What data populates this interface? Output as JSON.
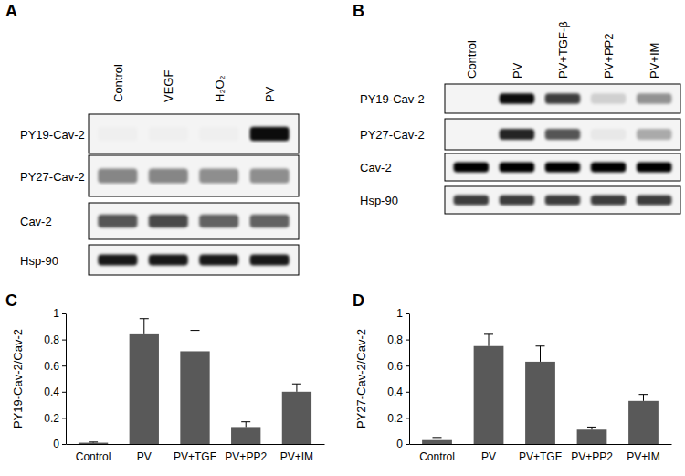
{
  "panels": [
    {
      "label": "A",
      "type": "blot",
      "lanes": [
        "Control",
        "VEGF",
        "H₂O₂",
        "PV"
      ],
      "rows": [
        {
          "name": "PY19-Cav-2",
          "bands": [
            0.02,
            0.02,
            0.02,
            0.95
          ]
        },
        {
          "name": "PY27-Cav-2",
          "bands": [
            0.45,
            0.45,
            0.42,
            0.42
          ]
        },
        {
          "name": "Cav-2",
          "bands": [
            0.65,
            0.7,
            0.6,
            0.6
          ]
        },
        {
          "name": "Hsp-90",
          "bands": [
            0.9,
            0.9,
            0.9,
            0.9
          ]
        }
      ]
    },
    {
      "label": "B",
      "type": "blot",
      "lanes": [
        "Control",
        "PV",
        "PV+TGF-β",
        "PV+PP2",
        "PV+IM"
      ],
      "rows": [
        {
          "name": "PY19-Cav-2",
          "bands": [
            0,
            0.95,
            0.75,
            0.15,
            0.4
          ]
        },
        {
          "name": "PY27-Cav-2",
          "bands": [
            0,
            0.85,
            0.65,
            0.05,
            0.3
          ]
        },
        {
          "name": "Cav-2",
          "bands": [
            1,
            1,
            1,
            1,
            1
          ]
        },
        {
          "name": "Hsp-90",
          "bands": [
            0.75,
            0.75,
            0.75,
            0.75,
            0.75
          ]
        }
      ]
    }
  ],
  "chart_data": [
    {
      "type": "bar",
      "title": "C",
      "y_label": "PY19-Cav-2/Cav-2",
      "categories": [
        "Control",
        "PV",
        "PV+TGF",
        "PV+PP2",
        "PV+IM"
      ],
      "values": [
        0.01,
        0.84,
        0.71,
        0.13,
        0.4
      ],
      "errors": [
        0.005,
        0.12,
        0.16,
        0.04,
        0.06
      ],
      "color": "#595959",
      "ylim": [
        0,
        1
      ],
      "yticks": [
        0,
        0.2,
        0.4,
        0.6,
        0.8,
        1
      ],
      "grid": false
    },
    {
      "type": "bar",
      "title": "D",
      "y_label": "PY27-Cav-2/Cav-2",
      "categories": [
        "Control",
        "PV",
        "PV+TGF",
        "PV+PP2",
        "PV+IM"
      ],
      "values": [
        0.03,
        0.75,
        0.63,
        0.11,
        0.33
      ],
      "errors": [
        0.02,
        0.09,
        0.12,
        0.02,
        0.05
      ],
      "color": "#595959",
      "ylim": [
        0,
        1
      ],
      "yticks": [
        0,
        0.2,
        0.4,
        0.6,
        0.8,
        1
      ],
      "grid": false
    }
  ]
}
